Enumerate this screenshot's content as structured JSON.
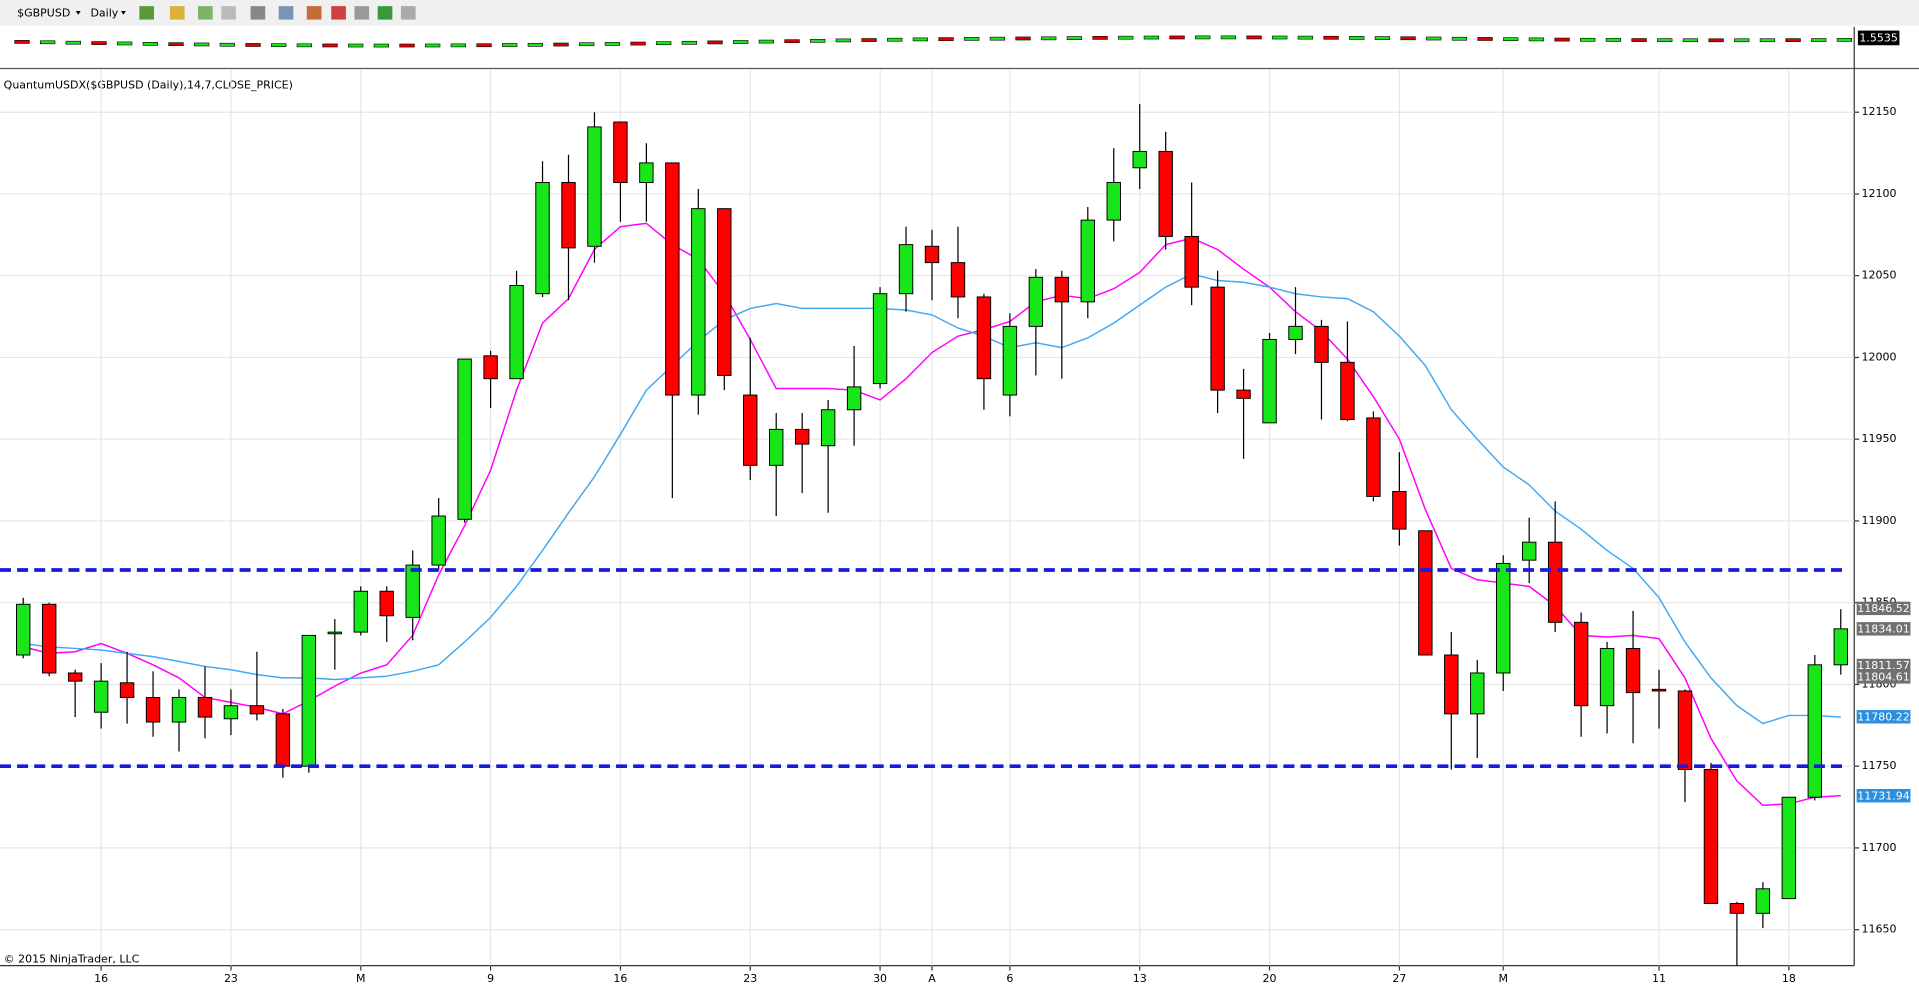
{
  "chart_data": {
    "type": "candlestick",
    "symbol": "$GBPUSD",
    "interval": "Daily",
    "overview_price": "1.5535",
    "indicator_label": "QuantumUSDX($GBPUSD (Daily),14,7,CLOSE_PRICE)",
    "copyright": "© 2015 NinjaTrader, LLC",
    "categories": [
      null,
      null,
      null,
      "16",
      null,
      null,
      null,
      null,
      "23",
      null,
      null,
      null,
      null,
      "M",
      null,
      null,
      null,
      null,
      "9",
      null,
      null,
      null,
      null,
      "16",
      null,
      null,
      null,
      null,
      "23",
      null,
      null,
      null,
      null,
      "30",
      null,
      "A",
      null,
      null,
      "6",
      null,
      null,
      null,
      null,
      "13",
      null,
      null,
      null,
      null,
      "20",
      null,
      null,
      null,
      null,
      "27",
      null,
      null,
      null,
      "M",
      null,
      null,
      null,
      null,
      null,
      "11",
      null,
      null,
      null,
      null,
      "18",
      null,
      null
    ],
    "open": [
      11818,
      11849,
      11807,
      11783,
      11801,
      11792,
      11777,
      11792,
      11779,
      11787,
      11782,
      11750,
      11831,
      11832,
      11857,
      11841,
      11873,
      11901,
      12001,
      11987,
      12039,
      12107,
      12068,
      12144,
      12107,
      12119,
      11977,
      12091,
      11977,
      11934,
      11956,
      11946,
      11968,
      11984,
      12039,
      12068,
      12058,
      12037,
      11977,
      12019,
      12049,
      12034,
      12084,
      12116,
      12126,
      12074,
      12043,
      11980,
      11960,
      12011,
      12019,
      11997,
      11963,
      11918,
      11894,
      11818,
      11782,
      11807,
      11876,
      11887,
      11838,
      11787,
      11822,
      11797,
      11796,
      11748,
      11666,
      11660,
      11669,
      11731,
      11812
    ],
    "high": [
      11853,
      11850,
      11809,
      11813,
      11820,
      11808,
      11797,
      11811,
      11797,
      11820,
      11785,
      11830,
      11840,
      11860,
      11860,
      11882,
      11914,
      11999,
      12004,
      12053,
      12120,
      12124,
      12150,
      12144,
      12131,
      12119,
      12103,
      12091,
      12012,
      11966,
      11966,
      11974,
      12007,
      12043,
      12080,
      12078,
      12080,
      12039,
      12027,
      12054,
      12053,
      12092,
      12128,
      12155,
      12138,
      12107,
      12053,
      11993,
      12015,
      12043,
      12023,
      12022,
      11967,
      11942,
      11894,
      11832,
      11815,
      11879,
      11902,
      11912,
      11844,
      11826,
      11845,
      11809,
      11797,
      11752,
      11667,
      11679,
      11731,
      11818,
      11846
    ],
    "low": [
      11816,
      11805,
      11780,
      11773,
      11776,
      11768,
      11759,
      11767,
      11769,
      11778,
      11743,
      11746,
      11809,
      11830,
      11826,
      11827,
      11870,
      11899,
      11969,
      11987,
      12037,
      12035,
      12058,
      12083,
      12083,
      11914,
      11965,
      11980,
      11925,
      11903,
      11917,
      11905,
      11946,
      11981,
      12028,
      12035,
      12024,
      11968,
      11964,
      11989,
      11987,
      12024,
      12071,
      12103,
      12066,
      12032,
      11966,
      11938,
      11960,
      12002,
      11962,
      11961,
      11912,
      11885,
      11818,
      11748,
      11755,
      11796,
      11862,
      11832,
      11768,
      11770,
      11764,
      11773,
      11728,
      11666,
      11628,
      11651,
      11669,
      11729,
      11806
    ],
    "close": [
      11849,
      11807,
      11802,
      11802,
      11792,
      11777,
      11792,
      11780,
      11787,
      11782,
      11750,
      11830,
      11832,
      11857,
      11842,
      11873,
      11903,
      11999,
      11987,
      12044,
      12107,
      12067,
      12141,
      12107,
      12119,
      11977,
      12091,
      11989,
      11934,
      11956,
      11947,
      11968,
      11982,
      12039,
      12069,
      12058,
      12037,
      11987,
      12019,
      12049,
      12034,
      12084,
      12107,
      12126,
      12074,
      12043,
      11980,
      11975,
      12011,
      12019,
      11997,
      11962,
      11915,
      11895,
      11818,
      11782,
      11807,
      11874,
      11887,
      11838,
      11787,
      11822,
      11795,
      11796,
      11748,
      11666,
      11660,
      11675,
      11731,
      11812,
      11834
    ],
    "up_color": "#19e619",
    "down_color": "#ff0000",
    "lines": [
      {
        "color": "#ff00ff",
        "values": [
          11823,
          11819,
          11820,
          11825,
          11819,
          11812,
          11804,
          11792,
          11789,
          11786,
          11782,
          11790,
          11799,
          11807,
          11812,
          11830,
          11867,
          11897,
          11931,
          11980,
          12021,
          12036,
          12066,
          12080,
          12082,
          12069,
          12060,
          12039,
          12011,
          11981,
          11981,
          11981,
          11980,
          11974,
          11987,
          12003,
          12013,
          12017,
          12022,
          12034,
          12038,
          12036,
          12042,
          12052,
          12069,
          12073,
          12066,
          12054,
          12043,
          12028,
          12016,
          11999,
          11976,
          11950,
          11907,
          11871,
          11864,
          11862,
          11860,
          11848,
          11830,
          11829,
          11830,
          11828,
          11804,
          11767,
          11741,
          11726,
          11727,
          11731,
          11732
        ]
      },
      {
        "color": "#3fa9f5",
        "values": [
          11825,
          11823,
          11822,
          11821,
          11819,
          11817,
          11814,
          11811,
          11809,
          11806,
          11804,
          11804,
          11803,
          11804,
          11805,
          11808,
          11812,
          11826,
          11841,
          11860,
          11882,
          11905,
          11927,
          11953,
          11980,
          11995,
          12010,
          12023,
          12030,
          12033,
          12030,
          12030,
          12030,
          12030,
          12029,
          12026,
          12018,
          12013,
          12006,
          12009,
          12006,
          12012,
          12021,
          12032,
          12043,
          12051,
          12047,
          12046,
          12043,
          12039,
          12037,
          12036,
          12028,
          12013,
          11995,
          11968,
          11950,
          11933,
          11922,
          11906,
          11895,
          11882,
          11871,
          11853,
          11826,
          11804,
          11787,
          11776,
          11781,
          11781,
          11780
        ]
      }
    ],
    "levels": [
      11870,
      11750
    ],
    "level_color": "#1a1adb",
    "price_labels": [
      {
        "value": 11846.52,
        "color": "#707070"
      },
      {
        "value": 11834.01,
        "color": "#707070"
      },
      {
        "value": 11811.57,
        "color": "#707070"
      },
      {
        "value": 11804.61,
        "color": "#707070"
      },
      {
        "value": 11780.22,
        "color": "#2a8fe0"
      },
      {
        "value": 11731.94,
        "color": "#2a8fe0"
      }
    ],
    "ylim": [
      11628,
      12176
    ],
    "yticks": [
      11650,
      11700,
      11750,
      11800,
      11850,
      11900,
      11950,
      12000,
      12050,
      12100,
      12150
    ],
    "grid": true
  }
}
